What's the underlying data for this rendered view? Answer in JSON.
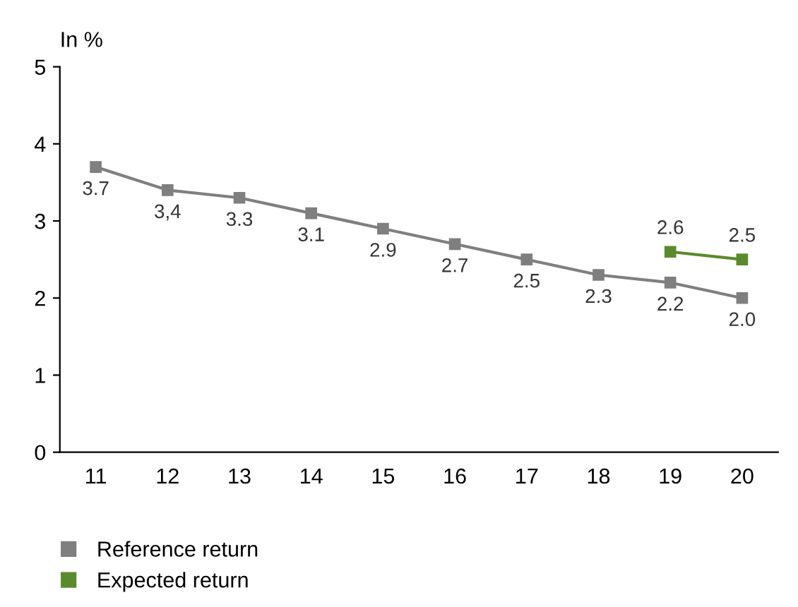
{
  "chart_data": {
    "type": "line",
    "ylabel": "In %",
    "categories": [
      "11",
      "12",
      "13",
      "14",
      "15",
      "16",
      "17",
      "18",
      "19",
      "20"
    ],
    "series": [
      {
        "name": "Reference return",
        "color": "#7f7f7f",
        "values": [
          3.7,
          3.4,
          3.3,
          3.1,
          2.9,
          2.7,
          2.5,
          2.3,
          2.2,
          2.0
        ],
        "value_labels": [
          "3.7",
          "3,4",
          "3.3",
          "3.1",
          "2.9",
          "2.7",
          "2.5",
          "2.3",
          "2.2",
          "2.0"
        ]
      },
      {
        "name": "Expected return",
        "color": "#5b8a2e",
        "values": [
          null,
          null,
          null,
          null,
          null,
          null,
          null,
          null,
          2.6,
          2.5
        ],
        "value_labels": [
          null,
          null,
          null,
          null,
          null,
          null,
          null,
          null,
          "2.6",
          "2.5"
        ]
      }
    ],
    "ylim": [
      0,
      5
    ],
    "yticks": [
      0,
      1,
      2,
      3,
      4,
      5
    ],
    "grid": false,
    "legend": "bottom left",
    "marker": "square",
    "line_style": "solid"
  }
}
